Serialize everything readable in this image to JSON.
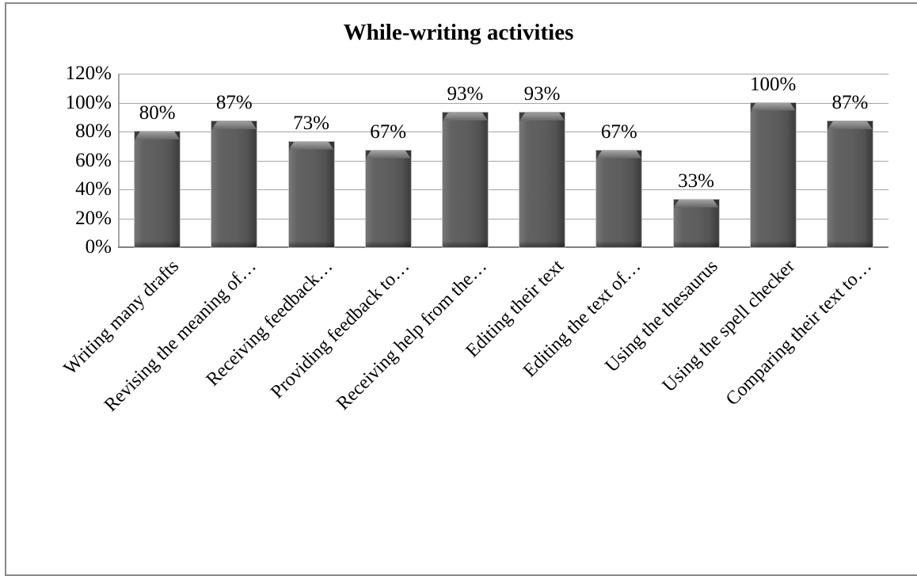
{
  "chart_data": {
    "type": "bar",
    "title": "While-writing activities",
    "categories": [
      "Writing many drafts",
      "Revising the meaning of…",
      "Receiving feedback…",
      "Providing feedback to…",
      "Receiving help from the…",
      "Editing their text",
      "Editing the text of…",
      "Using the thesaurus",
      "Using the spell checker",
      "Comparing their text to…"
    ],
    "values": [
      80,
      87,
      73,
      67,
      93,
      93,
      67,
      33,
      100,
      87
    ],
    "data_labels": [
      "80%",
      "87%",
      "73%",
      "67%",
      "93%",
      "93%",
      "67%",
      "33%",
      "100%",
      "87%"
    ],
    "y_ticks": [
      {
        "value": 120,
        "label": "120%"
      },
      {
        "value": 100,
        "label": "100%"
      },
      {
        "value": 80,
        "label": "80%"
      },
      {
        "value": 60,
        "label": "60%"
      },
      {
        "value": 40,
        "label": "40%"
      },
      {
        "value": 20,
        "label": "20%"
      },
      {
        "value": 0,
        "label": "0%"
      }
    ],
    "ylim": [
      0,
      120
    ],
    "xlabel": "",
    "ylabel": "",
    "grid": "horizontal-major",
    "legend": "none",
    "colors": {
      "bar": "#595959",
      "bar_highlight": "#a3a3a3",
      "bar_shadow": "#3c3c3c",
      "gridline": "#a6a6a6",
      "axis": "#808080",
      "frame": "#898989",
      "text": "#000000",
      "background": "#ffffff"
    }
  }
}
